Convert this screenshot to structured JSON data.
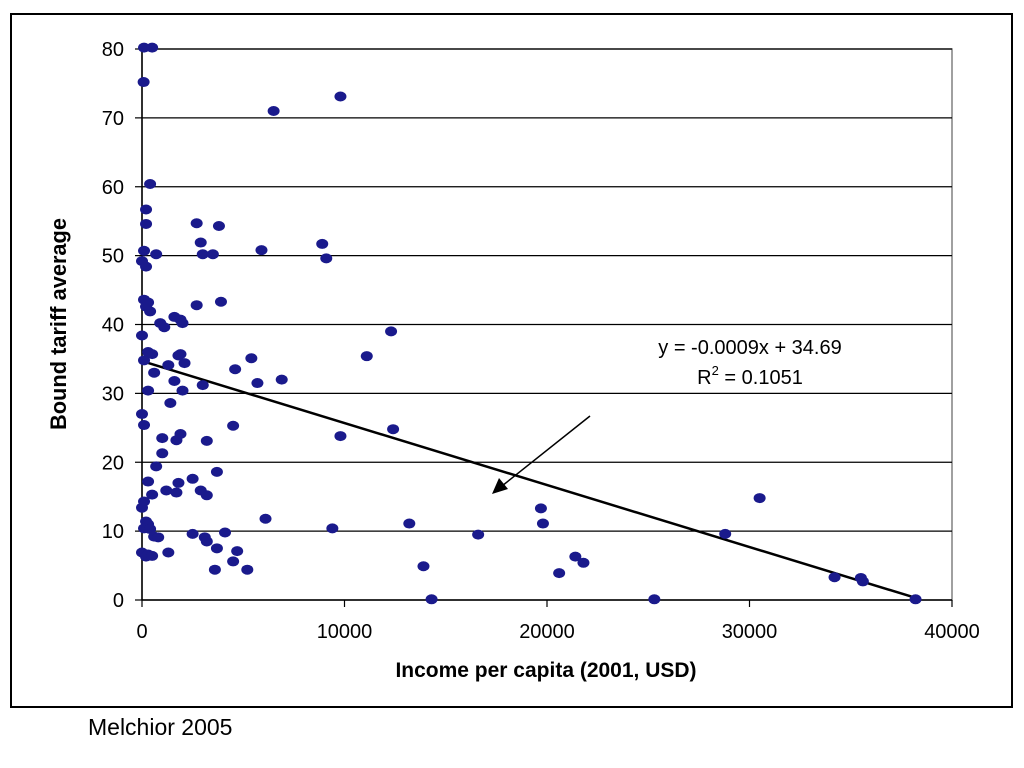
{
  "source_note": "Melchior 2005",
  "chart_data": {
    "type": "scatter",
    "xlabel": "Income per capita (2001, USD)",
    "ylabel": "Bound tariff average",
    "xlim": [
      0,
      40000
    ],
    "ylim": [
      0,
      80
    ],
    "x_ticks": [
      "0",
      "10000",
      "20000",
      "30000",
      "40000"
    ],
    "y_ticks": [
      "0",
      "10",
      "20",
      "30",
      "40",
      "50",
      "60",
      "70",
      "80"
    ],
    "grid": "horizontal",
    "legend": "none",
    "marker_color": "#1a1a8c",
    "trendline": {
      "slope": -0.0009,
      "intercept": 34.69,
      "equation_label": "y = -0.0009x + 34.69",
      "r2_prefix": "R",
      "r2_exponent": "2",
      "r2_value": " = 0.1051"
    },
    "points": [
      [
        100,
        80.2
      ],
      [
        500,
        80.2
      ],
      [
        80,
        75.2
      ],
      [
        6500,
        71
      ],
      [
        9800,
        73.1
      ],
      [
        400,
        60.4
      ],
      [
        200,
        56.7
      ],
      [
        200,
        54.6
      ],
      [
        2700,
        54.7
      ],
      [
        3800,
        54.3
      ],
      [
        100,
        50.7
      ],
      [
        0,
        49.2
      ],
      [
        200,
        48.4
      ],
      [
        700,
        50.2
      ],
      [
        3000,
        50.2
      ],
      [
        3500,
        50.2
      ],
      [
        5900,
        50.8
      ],
      [
        8900,
        51.7
      ],
      [
        9100,
        49.6
      ],
      [
        2900,
        51.9
      ],
      [
        100,
        43.6
      ],
      [
        300,
        43.2
      ],
      [
        200,
        42.6
      ],
      [
        400,
        41.9
      ],
      [
        2700,
        42.8
      ],
      [
        3900,
        43.3
      ],
      [
        900,
        40.2
      ],
      [
        1100,
        39.6
      ],
      [
        1600,
        41.1
      ],
      [
        1900,
        40.7
      ],
      [
        2000,
        40.2
      ],
      [
        12300,
        39
      ],
      [
        0,
        38.4
      ],
      [
        300,
        36
      ],
      [
        500,
        35.7
      ],
      [
        1900,
        35.7
      ],
      [
        1800,
        35.5
      ],
      [
        2100,
        34.4
      ],
      [
        5400,
        35.1
      ],
      [
        11100,
        35.4
      ],
      [
        100,
        34.8
      ],
      [
        1300,
        34.1
      ],
      [
        600,
        33
      ],
      [
        4600,
        33.5
      ],
      [
        1600,
        31.8
      ],
      [
        3000,
        31.2
      ],
      [
        5700,
        31.5
      ],
      [
        6900,
        32
      ],
      [
        300,
        30.4
      ],
      [
        2000,
        30.4
      ],
      [
        1400,
        28.6
      ],
      [
        0,
        27
      ],
      [
        100,
        25.4
      ],
      [
        4500,
        25.3
      ],
      [
        12400,
        24.8
      ],
      [
        9800,
        23.8
      ],
      [
        1000,
        23.5
      ],
      [
        1700,
        23.2
      ],
      [
        3200,
        23.1
      ],
      [
        1900,
        24.1
      ],
      [
        1000,
        21.3
      ],
      [
        700,
        19.4
      ],
      [
        3700,
        18.6
      ],
      [
        100,
        14.3
      ],
      [
        300,
        17.2
      ],
      [
        2500,
        17.6
      ],
      [
        1800,
        17
      ],
      [
        1200,
        15.9
      ],
      [
        1700,
        15.6
      ],
      [
        2900,
        15.9
      ],
      [
        3200,
        15.2
      ],
      [
        500,
        15.3
      ],
      [
        0,
        13.4
      ],
      [
        200,
        11.4
      ],
      [
        300,
        11
      ],
      [
        100,
        10.4
      ],
      [
        400,
        10.3
      ],
      [
        4100,
        9.8
      ],
      [
        6100,
        11.8
      ],
      [
        9400,
        10.4
      ],
      [
        13200,
        11.1
      ],
      [
        19700,
        13.3
      ],
      [
        19800,
        11.1
      ],
      [
        30500,
        14.8
      ],
      [
        2500,
        9.6
      ],
      [
        3100,
        9.1
      ],
      [
        3200,
        8.5
      ],
      [
        600,
        9.2
      ],
      [
        800,
        9.1
      ],
      [
        28800,
        9.6
      ],
      [
        16600,
        9.5
      ],
      [
        0,
        6.9
      ],
      [
        200,
        6.3
      ],
      [
        300,
        6.6
      ],
      [
        500,
        6.4
      ],
      [
        1300,
        6.9
      ],
      [
        3700,
        7.5
      ],
      [
        4700,
        7.1
      ],
      [
        4500,
        5.6
      ],
      [
        3600,
        4.4
      ],
      [
        5200,
        4.4
      ],
      [
        13900,
        4.9
      ],
      [
        20600,
        3.9
      ],
      [
        21400,
        6.3
      ],
      [
        21800,
        5.4
      ],
      [
        34200,
        3.3
      ],
      [
        35500,
        3.2
      ],
      [
        35600,
        2.7
      ],
      [
        14300,
        0.1
      ],
      [
        25300,
        0.1
      ],
      [
        38200,
        0.1
      ]
    ]
  }
}
